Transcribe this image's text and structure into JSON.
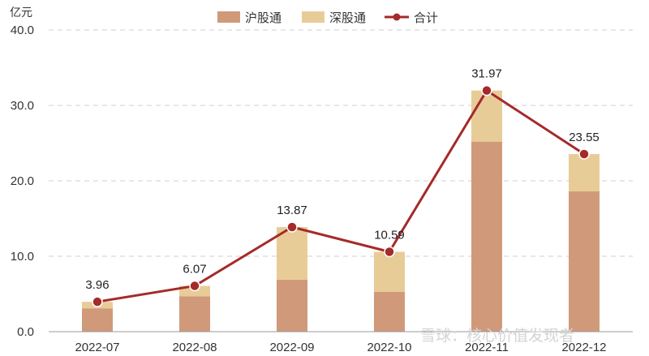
{
  "chart_data": {
    "type": "bar",
    "stacked": true,
    "unit_label": "亿元",
    "categories": [
      "2022-07",
      "2022-08",
      "2022-09",
      "2022-10",
      "2022-11",
      "2022-12"
    ],
    "series": [
      {
        "name": "沪股通",
        "kind": "bar",
        "color": "#d09a7a",
        "values": [
          3.1,
          4.7,
          6.9,
          5.3,
          25.2,
          18.6
        ]
      },
      {
        "name": "深股通",
        "kind": "bar",
        "color": "#e8cc98",
        "values": [
          0.86,
          1.37,
          6.97,
          5.29,
          6.77,
          4.95
        ]
      },
      {
        "name": "合计",
        "kind": "line",
        "color": "#a52a2a",
        "values": [
          3.96,
          6.07,
          13.87,
          10.59,
          31.97,
          23.55
        ]
      }
    ],
    "data_labels": [
      "3.96",
      "6.07",
      "13.87",
      "10.59",
      "31.97",
      "23.55"
    ],
    "y_ticks": [
      "0.0",
      "10.0",
      "20.0",
      "30.0",
      "40.0"
    ],
    "ylim": [
      0,
      40
    ],
    "grid": true,
    "legend_position": "top-center"
  },
  "watermark": {
    "text": "雪球：核心价值发现者"
  }
}
